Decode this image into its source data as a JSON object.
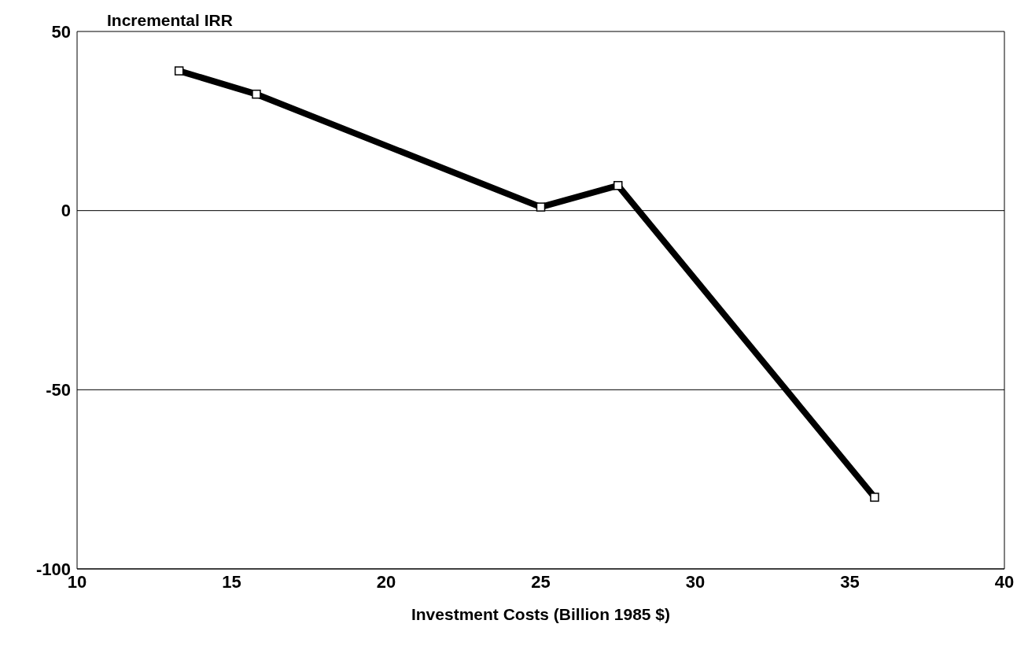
{
  "chart_data": {
    "type": "line",
    "xlabel": "Investment Costs (Billion 1985 $)",
    "ylabel": "Incremental IRR",
    "x": [
      13.3,
      15.8,
      25,
      27.5,
      35.8
    ],
    "series": [
      {
        "color": "#000000",
        "values": [
          39,
          32.5,
          1,
          7,
          -80
        ]
      }
    ],
    "xlim": [
      10,
      40
    ],
    "xticks": [
      10,
      15,
      20,
      25,
      30,
      35,
      40
    ],
    "ylim": [
      -100,
      50
    ],
    "yticks": [
      -100,
      -50,
      0,
      50
    ],
    "grid": "y",
    "marker": "square",
    "line_style": "solid"
  }
}
